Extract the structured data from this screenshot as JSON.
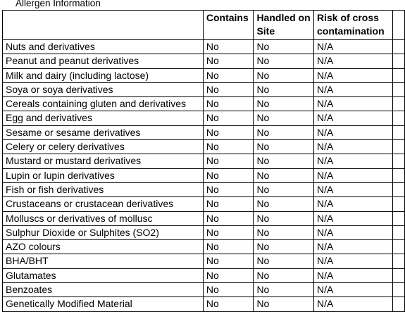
{
  "caption": "Allergen Information",
  "table": {
    "headers": [
      "",
      "Contains",
      "Handled on Site",
      "Risk of cross contamination"
    ],
    "rows": [
      [
        "Nuts and derivatives",
        "No",
        "No",
        "N/A"
      ],
      [
        "Peanut and peanut derivatives",
        "No",
        "No",
        "N/A"
      ],
      [
        "Milk and dairy (including lactose)",
        "No",
        "No",
        "N/A"
      ],
      [
        "Soya or soya derivatives",
        "No",
        "No",
        "N/A"
      ],
      [
        "Cereals containing gluten and derivatives",
        "No",
        "No",
        "N/A"
      ],
      [
        "Egg and derivatives",
        "No",
        "No",
        "N/A"
      ],
      [
        "Sesame or sesame derivatives",
        "No",
        "No",
        "N/A"
      ],
      [
        "Celery or celery derivatives",
        "No",
        "No",
        "N/A"
      ],
      [
        "Mustard or mustard derivatives",
        "No",
        "No",
        "N/A"
      ],
      [
        "Lupin or lupin derivatives",
        "No",
        "No",
        "N/A"
      ],
      [
        "Fish or fish derivatives",
        "No",
        "No",
        "N/A"
      ],
      [
        "Crustaceans or crustacean derivatives",
        "No",
        "No",
        "N/A"
      ],
      [
        "Molluscs or derivatives of mollusc",
        "No",
        "No",
        "N/A"
      ],
      [
        "Sulphur Dioxide or Sulphites (SO2)",
        "No",
        "No",
        "N/A"
      ],
      [
        "AZO colours",
        "No",
        "No",
        "N/A"
      ],
      [
        "BHA/BHT",
        "No",
        "No",
        "N/A"
      ],
      [
        "Glutamates",
        "No",
        "No",
        "N/A"
      ],
      [
        "Benzoates",
        "No",
        "No",
        "N/A"
      ],
      [
        "Genetically Modified Material",
        "No",
        "No",
        "N/A"
      ]
    ]
  }
}
